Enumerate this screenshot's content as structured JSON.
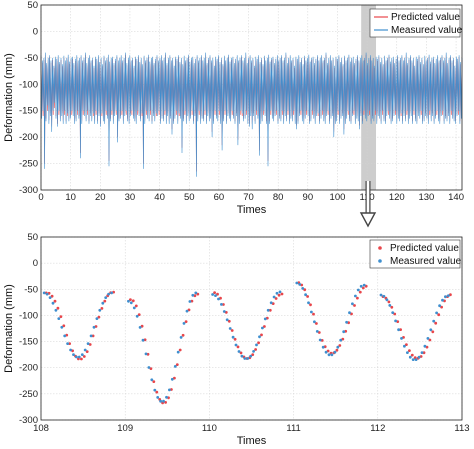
{
  "chart_data": [
    {
      "type": "line",
      "xlabel": "Times",
      "ylabel": "Deformation (mm)",
      "xlim": [
        0,
        142
      ],
      "ylim": [
        -300,
        50
      ],
      "xticks": [
        0,
        10,
        20,
        30,
        40,
        50,
        60,
        70,
        80,
        90,
        100,
        110,
        120,
        130,
        140
      ],
      "yticks": [
        50,
        0,
        -50,
        -100,
        -150,
        -200,
        -250,
        -300
      ],
      "grid": true,
      "legend_position": "top-right",
      "highlight_region_x": [
        108,
        113
      ],
      "series": [
        {
          "name": "Predicted value",
          "color": "#e8464b"
        },
        {
          "name": "Measured value",
          "color": "#3f8fcf"
        }
      ],
      "cycle_minima_measured": [
        -165,
        -150,
        -260,
        -170,
        -140,
        -175,
        -160,
        -190,
        -150,
        -135,
        -165,
        -180,
        -150,
        -170,
        -160,
        -175,
        -150,
        -175,
        -155,
        -170,
        -165,
        -150,
        -160,
        -175,
        -170,
        -150,
        -165,
        -240,
        -175,
        -150,
        -160,
        -170,
        -150,
        -175,
        -160,
        -170,
        -155,
        -175,
        -150,
        -175,
        -160,
        -180,
        -155,
        -170,
        -175,
        -150,
        -165,
        -255,
        -170,
        -150,
        -175,
        -160,
        -150,
        -210,
        -170,
        -165,
        -150,
        -175,
        -160,
        -150,
        -170,
        -175,
        -160,
        -150,
        -165,
        -170,
        -175,
        -150,
        -160,
        -170,
        -155,
        -260,
        -175,
        -150,
        -165,
        -170,
        -150,
        -175,
        -160,
        -170,
        -155,
        -160,
        -150,
        -175,
        -165,
        -170,
        -150,
        -175,
        -160,
        -175,
        -165,
        -195,
        -175,
        -165,
        -150,
        -175,
        -155,
        -165,
        -230,
        -170,
        -150,
        -175,
        -160,
        -170,
        -165,
        -150,
        -175,
        -160,
        -275,
        -170,
        -150,
        -175,
        -165,
        -170,
        -150,
        -175,
        -160,
        -170,
        -165,
        -200,
        -175,
        -150,
        -165,
        -170,
        -150,
        -175,
        -225,
        -170,
        -150,
        -175,
        -160,
        -165,
        -170,
        -150,
        -165,
        -175,
        -160,
        -215,
        -175,
        -150,
        -155,
        -170,
        -165,
        -150,
        -175,
        -180,
        -160,
        -185,
        -160,
        -175,
        -150,
        -165,
        -235,
        -175,
        -170,
        -150,
        -160,
        -175,
        -255,
        -175,
        -150,
        -165,
        -170,
        -160,
        -150,
        -175,
        -165,
        -170,
        -150,
        -175,
        -160,
        -170,
        -150,
        -175,
        -165,
        -170,
        -150,
        -175,
        -185,
        -175,
        -160,
        -150,
        -170,
        -175,
        -165,
        -150,
        -160,
        -175,
        -170,
        -150,
        -165,
        -175,
        -160,
        -155,
        -175,
        -165,
        -150,
        -170,
        -175,
        -160,
        -150,
        -175,
        -165,
        -160,
        -200,
        -175,
        -170,
        -150,
        -175,
        -165,
        -160,
        -195,
        -175,
        -165,
        -150,
        -170,
        -175,
        -160,
        -150,
        -175,
        -165,
        -170,
        -185,
        -160,
        -175,
        -150,
        -165,
        -170,
        -160,
        -150,
        -175,
        -165,
        -170,
        -150,
        -175,
        -160,
        -165,
        -175,
        -150,
        -170,
        -175,
        -160,
        -150,
        -165,
        -175,
        -170,
        -160,
        -150,
        -175,
        -165,
        -170,
        -155,
        -175,
        -160,
        -170,
        -150,
        -175,
        -165,
        -160,
        -175,
        -150,
        -170,
        -175,
        -160,
        -165,
        -150,
        -175,
        -170,
        -160,
        -165,
        -175,
        -150,
        -170,
        -160,
        -175,
        -165,
        -150,
        -170,
        -175,
        -160,
        -150,
        -175,
        -165,
        -170,
        -160,
        -175,
        -150,
        -165,
        -170,
        -175,
        -160,
        -150,
        -175,
        -165
      ],
      "cycle_minima_predicted": [
        -155,
        -160,
        -250,
        -165,
        -150,
        -168,
        -155,
        -180,
        -158,
        -145,
        -160,
        -175,
        -158,
        -165,
        -155,
        -170,
        -158,
        -170,
        -160,
        -165,
        -160,
        -158,
        -155,
        -170,
        -165,
        -158,
        -160,
        -230,
        -170,
        -158,
        -155,
        -165,
        -158,
        -170,
        -155,
        -165,
        -160,
        -170,
        -158,
        -170,
        -155,
        -175,
        -160,
        -165,
        -170,
        -158,
        -160,
        -245,
        -165,
        -158,
        -170,
        -155,
        -158,
        -200,
        -165,
        -160,
        -158,
        -170,
        -155,
        -158,
        -165,
        -170,
        -155,
        -158,
        -160,
        -165,
        -170,
        -158,
        -155,
        -165,
        -160,
        -250,
        -170,
        -158,
        -160,
        -165,
        -158,
        -170,
        -155,
        -165,
        -160,
        -155,
        -158,
        -170,
        -160,
        -165,
        -158,
        -170,
        -155,
        -170,
        -160,
        -185,
        -170,
        -160,
        -158,
        -170,
        -160,
        -160,
        -220,
        -165,
        -158,
        -170,
        -155,
        -165,
        -160,
        -158,
        -170,
        -155,
        -265,
        -165,
        -158,
        -170,
        -160,
        -165,
        -158,
        -170,
        -155,
        -165,
        -160,
        -190,
        -170,
        -158,
        -160,
        -165,
        -158,
        -170,
        -215,
        -165,
        -158,
        -170,
        -155,
        -160,
        -165,
        -158,
        -160,
        -170,
        -155,
        -205,
        -170,
        -158,
        -160,
        -165,
        -160,
        -158,
        -170,
        -175,
        -155,
        -175,
        -155,
        -170,
        -158,
        -160,
        -225,
        -170,
        -165,
        -158,
        -155,
        -170,
        -245,
        -170,
        -158,
        -160,
        -165,
        -155,
        -158,
        -170,
        -160,
        -165,
        -158,
        -170,
        -155,
        -165,
        -158,
        -170,
        -160,
        -165,
        -158,
        -170,
        -178,
        -170,
        -155,
        -158,
        -165,
        -170,
        -160,
        -158,
        -155,
        -170,
        -165,
        -158,
        -160,
        -170,
        -155,
        -160,
        -170,
        -160,
        -158,
        -165,
        -170,
        -155,
        -158,
        -170,
        -160,
        -155,
        -190,
        -170,
        -165,
        -158,
        -170,
        -160,
        -155,
        -185,
        -170,
        -160,
        -158,
        -165,
        -170,
        -155,
        -158,
        -170,
        -160,
        -165,
        -178,
        -155,
        -170,
        -158,
        -160,
        -165,
        -155,
        -158,
        -170,
        -160,
        -165,
        -158,
        -170,
        -155,
        -160,
        -170,
        -158,
        -165,
        -170,
        -155,
        -158,
        -160,
        -170,
        -165,
        -155,
        -158,
        -170,
        -160,
        -165,
        -160,
        -170,
        -155,
        -165,
        -158,
        -170,
        -160,
        -155,
        -170,
        -158,
        -165,
        -170,
        -155,
        -160,
        -158,
        -170,
        -165,
        -155,
        -160,
        -170,
        -158,
        -165,
        -155,
        -170,
        -160,
        -158,
        -165,
        -170,
        -155,
        -158,
        -170,
        -160,
        -165,
        -155,
        -170,
        -158,
        -160,
        -165,
        -170,
        -155,
        -158,
        -170,
        -160
      ],
      "cycle_maxima": [
        -45,
        -55,
        -50,
        -40,
        -60,
        -50,
        -45,
        -55,
        -50,
        -65,
        -48,
        -52,
        -45,
        -58,
        -50,
        -62,
        -46,
        -55,
        -50,
        -44,
        -57,
        -50,
        -48,
        -60,
        -52,
        -45,
        -55,
        -50
      ]
    },
    {
      "type": "scatter",
      "xlabel": "Times",
      "ylabel": "Deformation (mm)",
      "xlim": [
        108,
        113
      ],
      "ylim": [
        -300,
        50
      ],
      "xticks": [
        108,
        109,
        110,
        111,
        112,
        113
      ],
      "yticks": [
        50,
        0,
        -50,
        -100,
        -150,
        -200,
        -250,
        -300
      ],
      "grid": true,
      "legend_position": "top-right",
      "cycles": [
        {
          "start": 108.05,
          "end": 108.85,
          "max_start": -57,
          "max_end": -57,
          "min": -180
        },
        {
          "start": 109.05,
          "end": 109.85,
          "max_start": -73,
          "max_end": -57,
          "min": -265
        },
        {
          "start": 110.05,
          "end": 110.85,
          "max_start": -60,
          "max_end": -55,
          "min": -183
        },
        {
          "start": 111.05,
          "end": 111.85,
          "max_start": -38,
          "max_end": -42,
          "min": -176
        },
        {
          "start": 112.05,
          "end": 112.85,
          "max_start": -61,
          "max_end": -62,
          "min": -185
        }
      ],
      "series": [
        {
          "name": "Predicted value",
          "color": "#e8464b"
        },
        {
          "name": "Measured value",
          "color": "#3f8fcf"
        }
      ]
    }
  ]
}
